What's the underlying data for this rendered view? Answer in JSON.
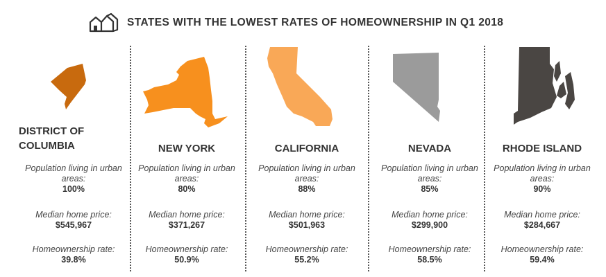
{
  "title": "STATES WITH THE LOWEST RATES OF HOMEOWNERSHIP IN Q1 2018",
  "icon": "houses-icon",
  "states": [
    {
      "name": "DISTRICT OF COLUMBIA",
      "name_line1": "DISTRICT OF",
      "name_line2": "COLUMBIA",
      "color": "#C86A0E",
      "urban_label": "Population living in urban areas:",
      "urban_value": "100%",
      "price_label": "Median home price:",
      "price_value": "$545,967",
      "rate_label": "Homeownership rate:",
      "rate_value": "39.8%"
    },
    {
      "name": "NEW YORK",
      "color": "#F7901E",
      "urban_label": "Population living in urban areas:",
      "urban_value": "80%",
      "price_label": "Median home price:",
      "price_value": "$371,267",
      "rate_label": "Homeownership rate:",
      "rate_value": "50.9%"
    },
    {
      "name": "CALIFORNIA",
      "color": "#F9A857",
      "urban_label": "Population living in urban areas:",
      "urban_value": "88%",
      "price_label": "Median home price:",
      "price_value": "$501,963",
      "rate_label": "Homeownership rate:",
      "rate_value": "55.2%"
    },
    {
      "name": "NEVADA",
      "color": "#9B9B9B",
      "urban_label": "Population living in urban areas:",
      "urban_value": "85%",
      "price_label": "Median home price:",
      "price_value": "$299,900",
      "rate_label": "Homeownership rate:",
      "rate_value": "58.5%"
    },
    {
      "name": "RHODE ISLAND",
      "color": "#4A4643",
      "urban_label": "Population living in urban areas:",
      "urban_value": "90%",
      "price_label": "Median home price:",
      "price_value": "$284,667",
      "rate_label": "Homeownership rate:",
      "rate_value": "59.4%"
    }
  ]
}
